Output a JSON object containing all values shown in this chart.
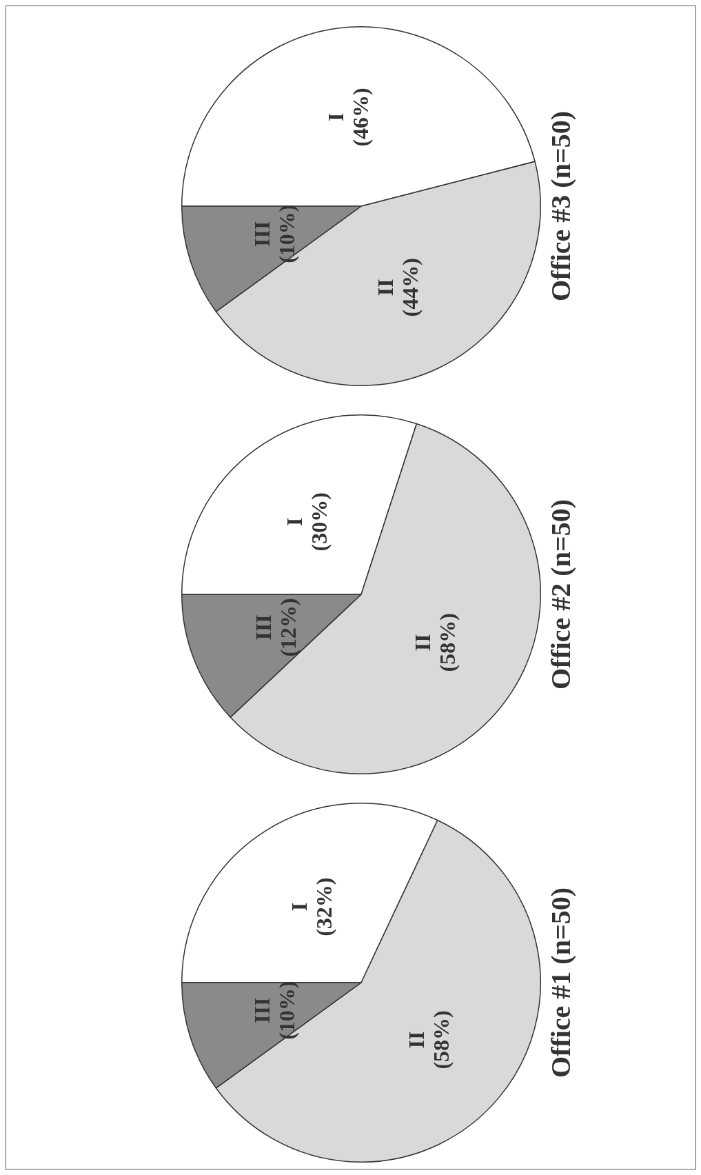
{
  "chart_data": [
    {
      "type": "pie",
      "title": "Office #1 (n=50)",
      "categories": [
        "I",
        "II",
        "III"
      ],
      "values": [
        32,
        58,
        10
      ],
      "value_labels": [
        "(32%)",
        "(58%)",
        "(10%)"
      ],
      "colors": [
        "#ffffff",
        "#d9d9d9",
        "#8a8a8a"
      ]
    },
    {
      "type": "pie",
      "title": "Office #2 (n=50)",
      "categories": [
        "I",
        "II",
        "III"
      ],
      "values": [
        30,
        58,
        12
      ],
      "value_labels": [
        "(30%)",
        "(58%)",
        "(12%)"
      ],
      "colors": [
        "#ffffff",
        "#d9d9d9",
        "#8a8a8a"
      ]
    },
    {
      "type": "pie",
      "title": "Office #3 (n=50)",
      "categories": [
        "I",
        "II",
        "III"
      ],
      "values": [
        46,
        44,
        10
      ],
      "value_labels": [
        "(46%)",
        "(44%)",
        "(10%)"
      ],
      "colors": [
        "#ffffff",
        "#d9d9d9",
        "#8a8a8a"
      ]
    }
  ]
}
